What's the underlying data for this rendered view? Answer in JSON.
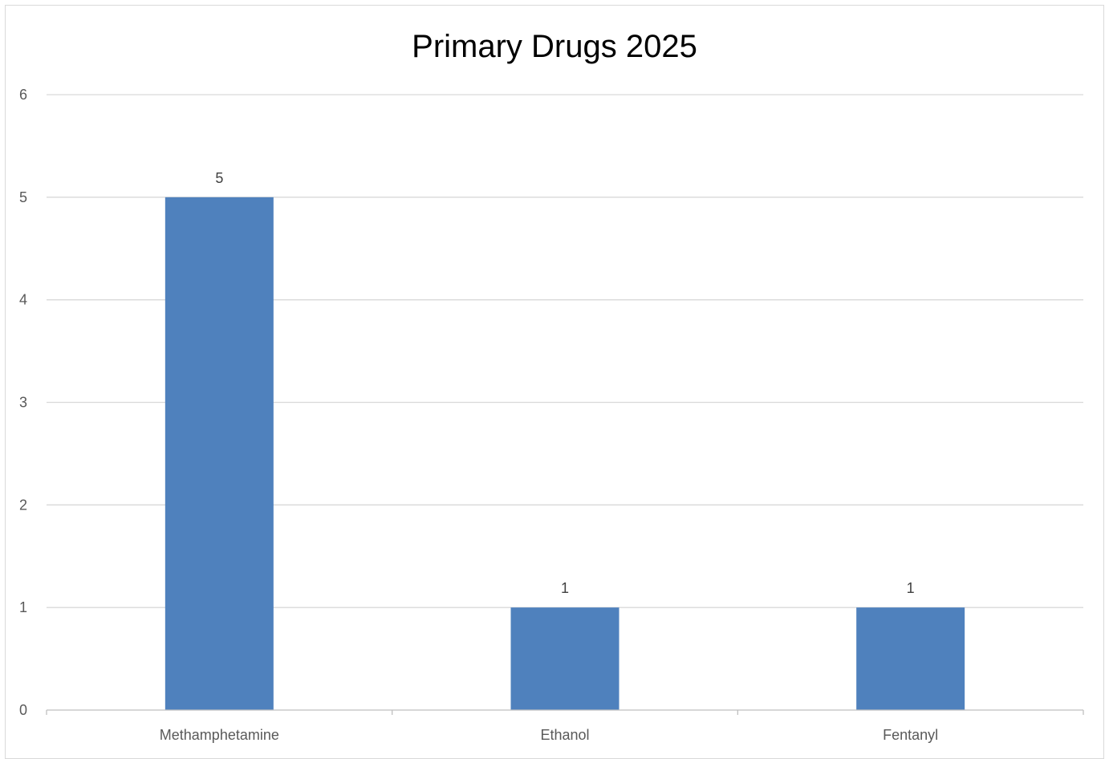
{
  "chart_data": {
    "type": "bar",
    "title": "Primary Drugs 2025",
    "categories": [
      "Methamphetamine",
      "Ethanol",
      "Fentanyl"
    ],
    "values": [
      5,
      1,
      1
    ],
    "ylim": [
      0,
      6
    ],
    "yticks": [
      0,
      1,
      2,
      3,
      4,
      5,
      6
    ],
    "data_labels": [
      "5",
      "1",
      "1"
    ],
    "xlabel": "",
    "ylabel": "",
    "grid": true,
    "legend": "none",
    "bar_color": "#4f81bd"
  }
}
